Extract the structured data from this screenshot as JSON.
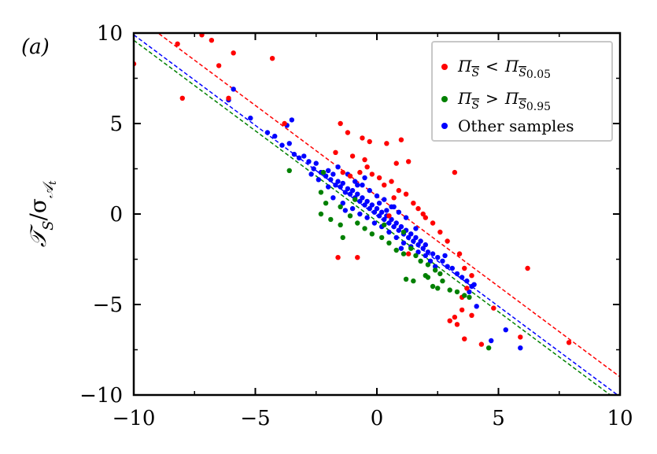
{
  "panel_label": "(a)",
  "chart_data": {
    "type": "scatter",
    "title": "",
    "xlabel": "",
    "ylabel": "T_S̄ / σ_𝒜t",
    "ylabel_parts": {
      "main": "𝒯",
      "sub_bar": "S",
      "slash": "/σ",
      "sub": "𝒜",
      "subsub": "t"
    },
    "xlim": [
      -10,
      10
    ],
    "ylim": [
      -10,
      10
    ],
    "xticks": [
      -10,
      -5,
      0,
      5,
      10
    ],
    "yticks": [
      -10,
      -5,
      0,
      5,
      10
    ],
    "xtick_labels": [
      "−10",
      "−5",
      "0",
      "5",
      "10"
    ],
    "ytick_labels": [
      "−10",
      "−5",
      "0",
      "5",
      "10"
    ],
    "grid": false,
    "legend_position": "top-right",
    "series": [
      {
        "name": "Π_S̄ < Π_S̄0.05",
        "legend": {
          "pi1": "Π",
          "bar1": "S",
          "op": "<",
          "pi2": "Π",
          "bar2": "S",
          "sub": "0.05"
        },
        "color": "#ff0000",
        "line": {
          "slope": -1.0,
          "intercept": 1.0
        },
        "points": [
          [
            -10.0,
            8.3
          ],
          [
            -8.2,
            9.4
          ],
          [
            -7.2,
            9.9
          ],
          [
            -6.8,
            9.6
          ],
          [
            -6.5,
            8.2
          ],
          [
            -5.9,
            8.9
          ],
          [
            -4.3,
            8.6
          ],
          [
            -8.0,
            6.4
          ],
          [
            -6.1,
            6.4
          ],
          [
            -3.8,
            5.0
          ],
          [
            -1.5,
            5.0
          ],
          [
            -1.2,
            4.5
          ],
          [
            -0.6,
            4.2
          ],
          [
            -0.3,
            4.0
          ],
          [
            0.4,
            3.9
          ],
          [
            1.0,
            4.1
          ],
          [
            1.3,
            2.9
          ],
          [
            0.8,
            2.8
          ],
          [
            -0.5,
            3.0
          ],
          [
            -1.0,
            3.2
          ],
          [
            -1.7,
            3.4
          ],
          [
            -1.4,
            2.3
          ],
          [
            -1.1,
            2.1
          ],
          [
            -0.7,
            2.3
          ],
          [
            -0.4,
            2.6
          ],
          [
            -0.2,
            2.2
          ],
          [
            0.1,
            2.0
          ],
          [
            0.3,
            1.6
          ],
          [
            0.6,
            1.8
          ],
          [
            0.9,
            1.3
          ],
          [
            1.2,
            1.1
          ],
          [
            1.5,
            0.6
          ],
          [
            1.7,
            0.3
          ],
          [
            2.0,
            -0.2
          ],
          [
            2.3,
            -0.5
          ],
          [
            2.6,
            -1.0
          ],
          [
            2.9,
            -1.5
          ],
          [
            3.2,
            2.3
          ],
          [
            3.4,
            -2.2
          ],
          [
            3.6,
            -3.0
          ],
          [
            3.9,
            -3.4
          ],
          [
            3.7,
            -4.1
          ],
          [
            3.5,
            -4.6
          ],
          [
            3.2,
            -5.7
          ],
          [
            3.0,
            -5.9
          ],
          [
            3.3,
            -6.1
          ],
          [
            3.5,
            -5.3
          ],
          [
            3.9,
            -5.6
          ],
          [
            3.6,
            -6.9
          ],
          [
            4.3,
            -7.2
          ],
          [
            4.8,
            -5.2
          ],
          [
            5.9,
            -6.8
          ],
          [
            6.2,
            -3.0
          ],
          [
            7.9,
            -7.1
          ],
          [
            1.3,
            -2.2
          ],
          [
            -0.8,
            -2.4
          ],
          [
            -1.6,
            -2.4
          ],
          [
            0.5,
            -0.1
          ],
          [
            0.7,
            0.9
          ],
          [
            1.9,
            0.0
          ]
        ]
      },
      {
        "name": "Π_S̄ > Π_S̄0.95",
        "legend": {
          "pi1": "Π",
          "bar1": "S",
          "op": ">",
          "pi2": "Π",
          "bar2": "S",
          "sub": "0.95"
        },
        "color": "#008000",
        "line": {
          "slope": -1.0,
          "intercept": -0.4
        },
        "points": [
          [
            -3.6,
            2.4
          ],
          [
            -2.2,
            2.3
          ],
          [
            -2.3,
            1.2
          ],
          [
            -2.1,
            0.6
          ],
          [
            -2.3,
            0.0
          ],
          [
            -1.9,
            -0.3
          ],
          [
            -1.5,
            -0.6
          ],
          [
            -1.5,
            0.4
          ],
          [
            -1.1,
            -0.1
          ],
          [
            -0.8,
            -0.5
          ],
          [
            -0.5,
            -0.8
          ],
          [
            -0.2,
            -1.1
          ],
          [
            0.2,
            -1.3
          ],
          [
            0.5,
            -1.6
          ],
          [
            0.8,
            -2.0
          ],
          [
            1.1,
            -2.2
          ],
          [
            1.4,
            -1.9
          ],
          [
            1.6,
            -2.3
          ],
          [
            1.8,
            -2.6
          ],
          [
            2.1,
            -2.8
          ],
          [
            2.4,
            -3.1
          ],
          [
            2.6,
            -3.3
          ],
          [
            2.0,
            -3.4
          ],
          [
            1.5,
            -3.7
          ],
          [
            1.2,
            -3.6
          ],
          [
            2.1,
            -3.5
          ],
          [
            2.3,
            -4.0
          ],
          [
            2.7,
            -3.7
          ],
          [
            3.0,
            -4.2
          ],
          [
            3.3,
            -4.3
          ],
          [
            3.6,
            -4.5
          ],
          [
            3.8,
            -4.6
          ],
          [
            1.1,
            -1.0
          ],
          [
            0.3,
            -0.6
          ],
          [
            -1.4,
            -1.3
          ],
          [
            -0.9,
            0.8
          ],
          [
            2.5,
            -4.1
          ],
          [
            4.6,
            -7.4
          ]
        ]
      },
      {
        "name": "Other samples",
        "color": "#0000ff",
        "line": {
          "slope": -1.0,
          "intercept": -0.1
        },
        "points": [
          [
            -5.9,
            6.9
          ],
          [
            -6.1,
            6.3
          ],
          [
            -5.2,
            5.3
          ],
          [
            -4.5,
            4.5
          ],
          [
            -4.2,
            4.3
          ],
          [
            -3.9,
            3.8
          ],
          [
            -3.6,
            3.9
          ],
          [
            -3.4,
            3.3
          ],
          [
            -3.2,
            3.1
          ],
          [
            -3.0,
            3.2
          ],
          [
            -2.8,
            2.9
          ],
          [
            -2.6,
            2.5
          ],
          [
            -2.5,
            2.8
          ],
          [
            -2.3,
            2.3
          ],
          [
            -2.1,
            2.1
          ],
          [
            -2.0,
            2.4
          ],
          [
            -1.9,
            1.9
          ],
          [
            -1.8,
            2.2
          ],
          [
            -1.7,
            1.6
          ],
          [
            -1.6,
            1.8
          ],
          [
            -1.5,
            1.5
          ],
          [
            -1.4,
            1.7
          ],
          [
            -1.3,
            1.2
          ],
          [
            -1.2,
            1.4
          ],
          [
            -1.1,
            1.1
          ],
          [
            -1.0,
            1.3
          ],
          [
            -0.9,
            0.9
          ],
          [
            -0.8,
            1.1
          ],
          [
            -0.7,
            0.7
          ],
          [
            -0.6,
            0.9
          ],
          [
            -0.5,
            0.5
          ],
          [
            -0.4,
            0.7
          ],
          [
            -0.3,
            0.3
          ],
          [
            -0.2,
            0.5
          ],
          [
            -0.1,
            0.1
          ],
          [
            0.0,
            0.3
          ],
          [
            0.1,
            -0.1
          ],
          [
            0.2,
            0.1
          ],
          [
            0.3,
            -0.3
          ],
          [
            0.4,
            -0.1
          ],
          [
            0.5,
            -0.5
          ],
          [
            0.6,
            -0.3
          ],
          [
            0.7,
            -0.7
          ],
          [
            0.8,
            -0.5
          ],
          [
            0.9,
            -0.9
          ],
          [
            1.0,
            -0.7
          ],
          [
            1.1,
            -1.1
          ],
          [
            1.2,
            -0.9
          ],
          [
            1.3,
            -1.3
          ],
          [
            1.4,
            -1.1
          ],
          [
            1.5,
            -1.5
          ],
          [
            1.6,
            -1.3
          ],
          [
            1.7,
            -1.7
          ],
          [
            1.8,
            -1.5
          ],
          [
            1.9,
            -1.9
          ],
          [
            2.0,
            -1.7
          ],
          [
            2.1,
            -2.1
          ],
          [
            2.3,
            -2.2
          ],
          [
            2.5,
            -2.4
          ],
          [
            2.7,
            -2.6
          ],
          [
            2.9,
            -2.9
          ],
          [
            3.1,
            -3.0
          ],
          [
            3.3,
            -3.3
          ],
          [
            3.5,
            -3.5
          ],
          [
            3.7,
            -3.7
          ],
          [
            4.0,
            -3.9
          ],
          [
            -1.6,
            2.6
          ],
          [
            -1.2,
            2.2
          ],
          [
            -0.9,
            1.8
          ],
          [
            -0.6,
            1.6
          ],
          [
            -0.3,
            1.3
          ],
          [
            0.0,
            1.0
          ],
          [
            0.3,
            0.8
          ],
          [
            0.6,
            0.4
          ],
          [
            0.9,
            0.1
          ],
          [
            1.2,
            -0.2
          ],
          [
            -1.8,
            0.9
          ],
          [
            -1.4,
            0.6
          ],
          [
            -1.0,
            0.3
          ],
          [
            -0.7,
            0.0
          ],
          [
            -0.4,
            -0.2
          ],
          [
            -0.1,
            -0.5
          ],
          [
            0.2,
            -0.7
          ],
          [
            0.5,
            -1.0
          ],
          [
            0.8,
            -1.3
          ],
          [
            1.1,
            -1.6
          ],
          [
            1.4,
            -1.8
          ],
          [
            1.7,
            -2.1
          ],
          [
            2.0,
            -2.3
          ],
          [
            -2.0,
            1.5
          ],
          [
            -2.4,
            1.9
          ],
          [
            -2.7,
            2.2
          ],
          [
            -0.5,
            2.0
          ],
          [
            0.1,
            0.6
          ],
          [
            0.4,
            0.2
          ],
          [
            -3.5,
            5.2
          ],
          [
            -3.7,
            4.9
          ],
          [
            5.3,
            -6.4
          ],
          [
            5.9,
            -7.4
          ],
          [
            4.7,
            -7.0
          ],
          [
            3.8,
            -4.3
          ],
          [
            4.1,
            -5.1
          ],
          [
            2.2,
            -2.6
          ],
          [
            2.8,
            -2.3
          ],
          [
            1.0,
            -1.9
          ],
          [
            -1.3,
            0.2
          ],
          [
            -0.8,
            1.6
          ],
          [
            0.7,
            0.4
          ],
          [
            1.6,
            -0.8
          ],
          [
            3.9,
            -4.0
          ],
          [
            2.4,
            -2.9
          ]
        ]
      }
    ]
  }
}
